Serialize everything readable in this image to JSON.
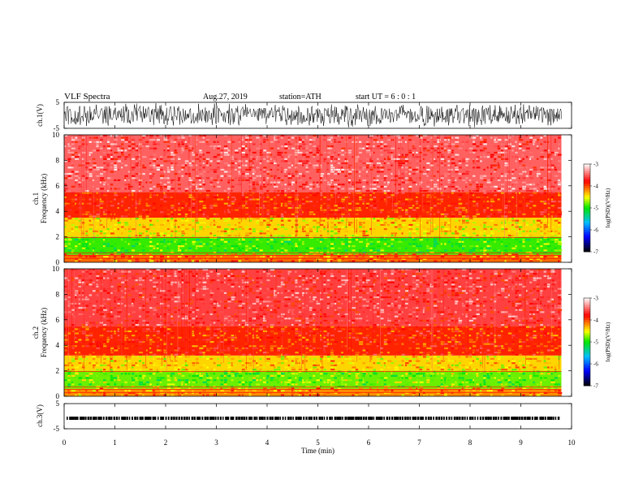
{
  "header": {
    "title": "VLF  Spectra",
    "date": "Aug.27, 2019",
    "station": "station=ATH",
    "start_ut": "start  UT  =    6  : 0   : 1"
  },
  "colors": {
    "background": "#ffffff",
    "trace": "#000000",
    "colormap": [
      "#000000",
      "#0000ff",
      "#00c0ff",
      "#00ff00",
      "#ffff00",
      "#ff0000",
      "#ffffff"
    ]
  },
  "chart_data": [
    {
      "type": "line",
      "panel": "ch1-waveform",
      "ylabel": "ch.1(V)",
      "ylim": [
        -5,
        5
      ],
      "yticks": [
        "5",
        "-5"
      ],
      "description_values": {
        "amplitude_range": [
          -3,
          3
        ]
      },
      "xlim": [
        0,
        10
      ]
    },
    {
      "type": "heatmap",
      "panel": "ch1-spectrogram",
      "ylabel_lines": [
        "ch.1",
        "Frequency  (kHz)"
      ],
      "ylim": [
        0,
        10
      ],
      "yticks": [
        "0",
        "2",
        "4",
        "6",
        "8",
        "10"
      ],
      "xlim": [
        0,
        9.8
      ],
      "colorbar": {
        "label": "log(PSD)(V²/Hz)",
        "range": [
          -7,
          -3
        ],
        "ticks": [
          "-3",
          "-4",
          "-5",
          "-6",
          "-7"
        ]
      },
      "bands_khz": [
        {
          "from": 0,
          "to": 0.6,
          "level": -4.1
        },
        {
          "from": 0.6,
          "to": 2.0,
          "level": -4.9
        },
        {
          "from": 2.0,
          "to": 3.5,
          "level": -4.4
        },
        {
          "from": 3.5,
          "to": 5.5,
          "level": -3.9
        },
        {
          "from": 5.5,
          "to": 10,
          "level": -3.5
        }
      ]
    },
    {
      "type": "heatmap",
      "panel": "ch2-spectrogram",
      "ylabel_lines": [
        "ch.2",
        "Frequency  (kHz)"
      ],
      "ylim": [
        0,
        10
      ],
      "yticks": [
        "0",
        "2",
        "4",
        "6",
        "8",
        "10"
      ],
      "xlim": [
        0,
        9.8
      ],
      "colorbar": {
        "label": "log(PSD)(V²/Hz)",
        "range": [
          -7,
          -3
        ],
        "ticks": [
          "-3",
          "-4",
          "-5",
          "-6",
          "-7"
        ]
      },
      "bands_khz": [
        {
          "from": 0,
          "to": 0.6,
          "level": -4.2
        },
        {
          "from": 0.6,
          "to": 2.0,
          "level": -4.8
        },
        {
          "from": 2.0,
          "to": 3.2,
          "level": -4.4
        },
        {
          "from": 3.2,
          "to": 5.5,
          "level": -3.9
        },
        {
          "from": 5.5,
          "to": 10,
          "level": -3.6
        }
      ]
    },
    {
      "type": "line",
      "panel": "ch3-waveform",
      "ylabel": "ch.3(V)",
      "ylim": [
        -5,
        5
      ],
      "yticks": [
        "5",
        "-5"
      ],
      "description_values": {
        "offset": -0.8
      },
      "xlim": [
        0,
        10
      ]
    }
  ],
  "x_axis": {
    "label": "Time  (min)",
    "ticks": [
      "0",
      "1",
      "2",
      "3",
      "4",
      "5",
      "6",
      "7",
      "8",
      "9",
      "10"
    ]
  }
}
